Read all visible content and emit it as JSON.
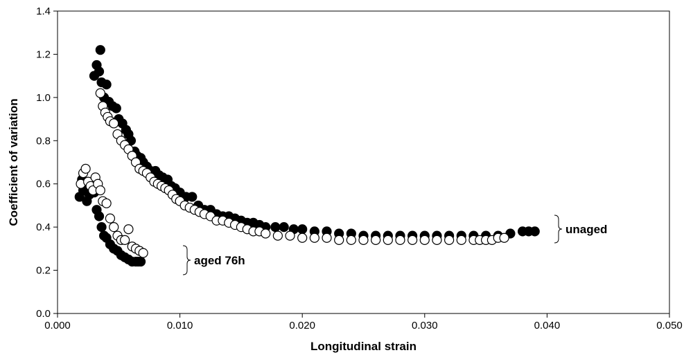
{
  "chart_data": {
    "type": "scatter",
    "title": "",
    "xlabel": "Longitudinal strain",
    "ylabel": "Coefficient of variation",
    "xlim": [
      0.0,
      0.05
    ],
    "ylim": [
      0.0,
      1.4
    ],
    "x_ticks": [
      "0.000",
      "0.010",
      "0.020",
      "0.030",
      "0.040",
      "0.050"
    ],
    "y_ticks": [
      "0.0",
      "0.2",
      "0.4",
      "0.6",
      "0.8",
      "1.0",
      "1.2",
      "1.4"
    ],
    "grid": false,
    "legend": "none",
    "annotations": [
      {
        "text": "unaged",
        "group": "unaged"
      },
      {
        "text": "aged 76h",
        "group": "aged 76h"
      }
    ],
    "series": [
      {
        "group": "unaged",
        "marker": "filled-circle",
        "color": "#000000",
        "x": [
          0.003,
          0.0032,
          0.0034,
          0.0035,
          0.0036,
          0.0038,
          0.004,
          0.0042,
          0.0045,
          0.0048,
          0.005,
          0.0053,
          0.0056,
          0.0058,
          0.006,
          0.0063,
          0.0065,
          0.0068,
          0.007,
          0.0073,
          0.0076,
          0.008,
          0.0083,
          0.0086,
          0.009,
          0.0093,
          0.0096,
          0.01,
          0.0105,
          0.011,
          0.0115,
          0.012,
          0.0125,
          0.013,
          0.0135,
          0.014,
          0.0145,
          0.015,
          0.0155,
          0.016,
          0.0165,
          0.017,
          0.0178,
          0.0185,
          0.0193,
          0.02,
          0.021,
          0.022,
          0.023,
          0.024,
          0.025,
          0.026,
          0.027,
          0.028,
          0.029,
          0.03,
          0.031,
          0.032,
          0.033,
          0.034,
          0.035,
          0.036,
          0.037,
          0.038,
          0.0385,
          0.039
        ],
        "y": [
          1.1,
          1.15,
          1.12,
          1.22,
          1.07,
          1.0,
          1.06,
          0.98,
          0.96,
          0.95,
          0.9,
          0.88,
          0.85,
          0.83,
          0.8,
          0.75,
          0.73,
          0.72,
          0.7,
          0.68,
          0.66,
          0.66,
          0.64,
          0.63,
          0.62,
          0.59,
          0.58,
          0.56,
          0.54,
          0.54,
          0.5,
          0.48,
          0.48,
          0.46,
          0.45,
          0.45,
          0.44,
          0.43,
          0.42,
          0.42,
          0.41,
          0.4,
          0.4,
          0.4,
          0.39,
          0.39,
          0.38,
          0.38,
          0.37,
          0.37,
          0.36,
          0.36,
          0.36,
          0.36,
          0.36,
          0.36,
          0.36,
          0.36,
          0.36,
          0.36,
          0.36,
          0.36,
          0.37,
          0.38,
          0.38,
          0.38
        ]
      },
      {
        "group": "unaged",
        "marker": "open-circle",
        "color": "#000000",
        "x": [
          0.0035,
          0.0037,
          0.0039,
          0.0041,
          0.0043,
          0.0046,
          0.0049,
          0.0052,
          0.0055,
          0.0058,
          0.0061,
          0.0064,
          0.0067,
          0.007,
          0.0073,
          0.0076,
          0.0079,
          0.0082,
          0.0085,
          0.0088,
          0.0091,
          0.0094,
          0.0097,
          0.01,
          0.0104,
          0.0108,
          0.0112,
          0.0116,
          0.012,
          0.0125,
          0.013,
          0.0135,
          0.014,
          0.0145,
          0.015,
          0.0155,
          0.016,
          0.0165,
          0.017,
          0.018,
          0.019,
          0.02,
          0.021,
          0.022,
          0.023,
          0.024,
          0.025,
          0.026,
          0.027,
          0.028,
          0.029,
          0.03,
          0.031,
          0.032,
          0.033,
          0.034,
          0.0345,
          0.035,
          0.0355,
          0.036,
          0.0365
        ],
        "y": [
          1.02,
          0.96,
          0.93,
          0.91,
          0.89,
          0.88,
          0.83,
          0.8,
          0.78,
          0.76,
          0.73,
          0.7,
          0.67,
          0.66,
          0.65,
          0.63,
          0.61,
          0.6,
          0.59,
          0.58,
          0.57,
          0.55,
          0.53,
          0.52,
          0.5,
          0.49,
          0.48,
          0.47,
          0.46,
          0.45,
          0.43,
          0.43,
          0.42,
          0.41,
          0.4,
          0.39,
          0.38,
          0.38,
          0.37,
          0.36,
          0.36,
          0.35,
          0.35,
          0.35,
          0.34,
          0.34,
          0.34,
          0.34,
          0.34,
          0.34,
          0.34,
          0.34,
          0.34,
          0.34,
          0.34,
          0.34,
          0.34,
          0.34,
          0.34,
          0.35,
          0.35
        ]
      },
      {
        "group": "aged 76h",
        "marker": "filled-circle",
        "color": "#000000",
        "x": [
          0.0018,
          0.002,
          0.0021,
          0.0022,
          0.0023,
          0.0024,
          0.0026,
          0.0028,
          0.003,
          0.0032,
          0.0034,
          0.0036,
          0.0038,
          0.004,
          0.0043,
          0.0046,
          0.0049,
          0.0052,
          0.0055,
          0.0058,
          0.0061,
          0.0064,
          0.0066,
          0.0068
        ],
        "y": [
          0.54,
          0.62,
          0.57,
          0.6,
          0.58,
          0.52,
          0.55,
          0.58,
          0.56,
          0.48,
          0.45,
          0.4,
          0.36,
          0.35,
          0.32,
          0.3,
          0.29,
          0.27,
          0.26,
          0.25,
          0.24,
          0.24,
          0.24,
          0.24
        ]
      },
      {
        "group": "aged 76h",
        "marker": "open-circle",
        "color": "#000000",
        "x": [
          0.0019,
          0.0021,
          0.0023,
          0.0025,
          0.0027,
          0.0029,
          0.0031,
          0.0033,
          0.0035,
          0.0037,
          0.004,
          0.0043,
          0.0046,
          0.0049,
          0.0052,
          0.0055,
          0.0058,
          0.0061,
          0.0064,
          0.0067,
          0.007
        ],
        "y": [
          0.6,
          0.65,
          0.67,
          0.61,
          0.59,
          0.57,
          0.63,
          0.6,
          0.57,
          0.52,
          0.51,
          0.44,
          0.4,
          0.36,
          0.34,
          0.34,
          0.39,
          0.31,
          0.3,
          0.29,
          0.28
        ]
      }
    ]
  }
}
